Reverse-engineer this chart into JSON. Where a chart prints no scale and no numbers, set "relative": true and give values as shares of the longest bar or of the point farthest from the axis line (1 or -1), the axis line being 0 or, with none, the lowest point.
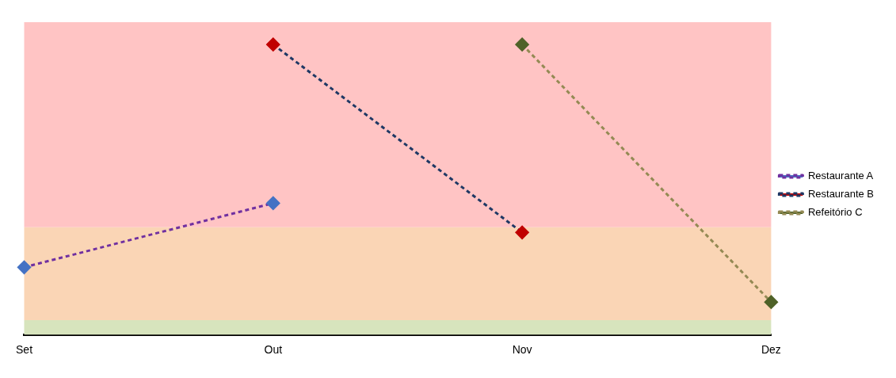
{
  "chart_data": {
    "type": "line",
    "relative": true,
    "categories": [
      "Set",
      "Out",
      "Nov",
      "Dez"
    ],
    "series": [
      {
        "name": "Restaurante A",
        "color": "#7030a0",
        "colors": [
          "#4472c4",
          "#4472c4",
          null,
          null
        ],
        "values": [
          0.232,
          0.453,
          null,
          null
        ]
      },
      {
        "name": "Restaurante B",
        "color": "#1f3864",
        "colors": [
          null,
          "#c00000",
          "#c00000",
          null
        ],
        "values": [
          null,
          1,
          0.352,
          null
        ]
      },
      {
        "name": "Refeitório C",
        "color": "#948a54",
        "colors": [
          null,
          null,
          "#4f6228",
          "#4f6228"
        ],
        "values": [
          null,
          null,
          1,
          0.112
        ]
      }
    ],
    "bands": [
      {
        "axis": "y",
        "from": 0,
        "to": 0.05,
        "color": "#d7e4bd"
      },
      {
        "axis": "y",
        "from": 0.05,
        "to": 0.37,
        "color": "#fad5b5"
      },
      {
        "axis": "y",
        "from": 0.37,
        "to": 1.077,
        "color": "#ffc4c4"
      }
    ],
    "marker": "diamond",
    "line_style": "dashed",
    "legend": "right",
    "grid": false
  }
}
